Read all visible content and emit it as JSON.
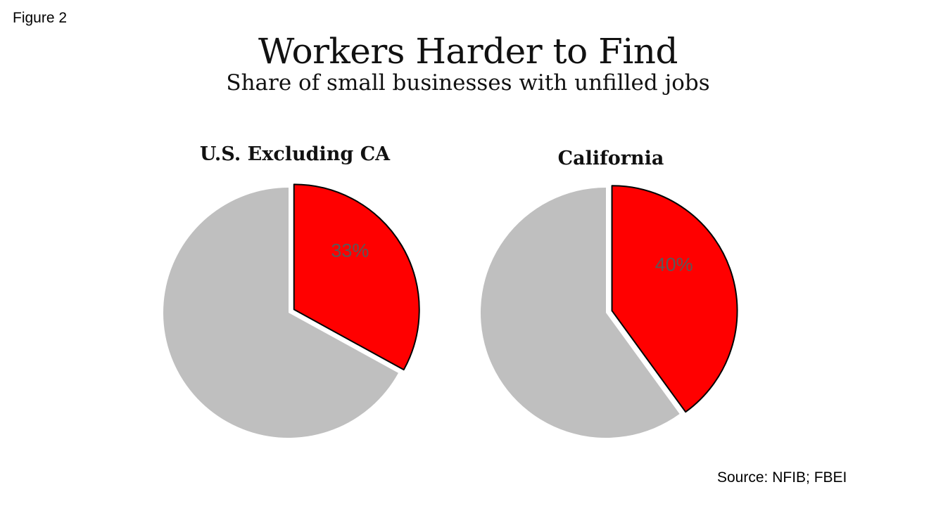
{
  "figure_label": "Figure 2",
  "title": "Workers Harder to Find",
  "subtitle": "Share of small businesses with unfilled jobs",
  "source": "Source: NFIB; FBEI",
  "colors": {
    "highlight": "#ff0000",
    "rest": "#bfbfbf",
    "outline": "#000000",
    "label": "#595959"
  },
  "chart_data": [
    {
      "type": "pie",
      "title": "U.S. Excluding CA",
      "slices": [
        {
          "value": 33,
          "label": "33%",
          "color": "#ff0000",
          "exploded": true
        },
        {
          "value": 67,
          "label": "",
          "color": "#bfbfbf",
          "exploded": false
        }
      ]
    },
    {
      "type": "pie",
      "title": "California",
      "slices": [
        {
          "value": 40,
          "label": "40%",
          "color": "#ff0000",
          "exploded": true
        },
        {
          "value": 60,
          "label": "",
          "color": "#bfbfbf",
          "exploded": false
        }
      ]
    }
  ]
}
